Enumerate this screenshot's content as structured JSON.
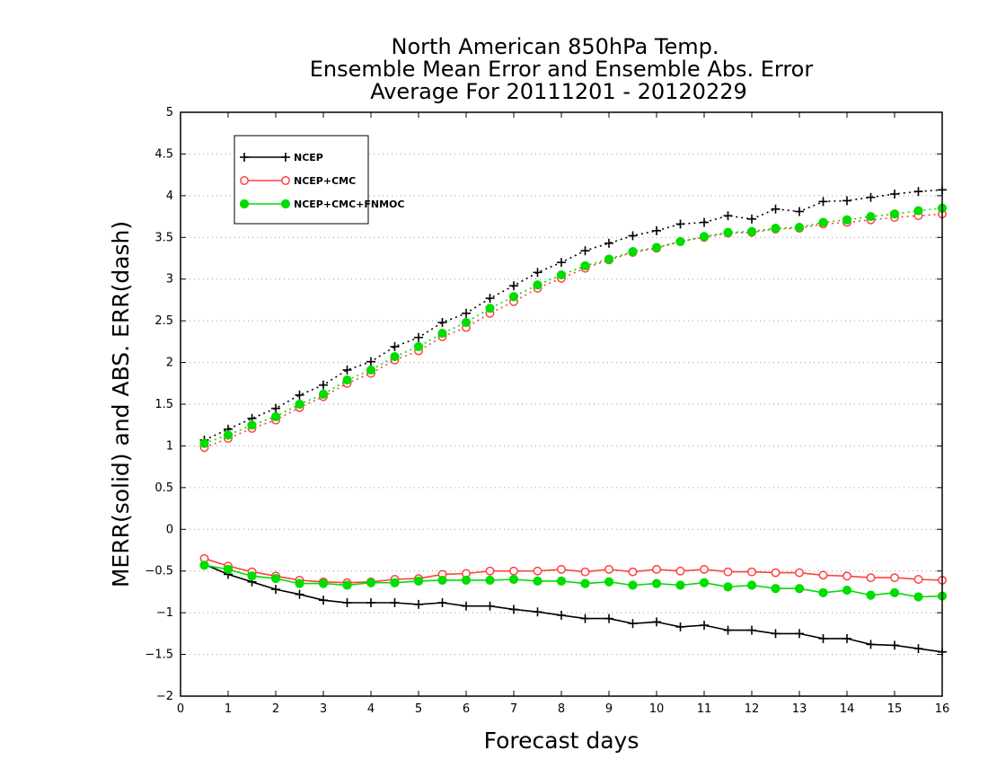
{
  "chart_data": {
    "type": "line",
    "title_lines": [
      "North American 850hPa Temp.",
      "Ensemble Mean Error and Ensemble Abs. Error",
      "Average For 20111201 - 20120229"
    ],
    "xlabel": "Forecast days",
    "ylabel": "MERR(solid) and ABS. ERR(dash)",
    "xlim": [
      0,
      16
    ],
    "ylim": [
      -2,
      5
    ],
    "xticks": [
      "0",
      "1",
      "2",
      "3",
      "4",
      "5",
      "6",
      "7",
      "8",
      "9",
      "10",
      "11",
      "12",
      "13",
      "14",
      "15",
      "16"
    ],
    "yticks": [
      "5",
      "4.5",
      "4",
      "3.5",
      "3",
      "2.5",
      "2",
      "1.5",
      "1",
      "0.5",
      "0",
      "-0.5",
      "-1",
      "-1.5",
      "-2"
    ],
    "grid": "horizontal-dotted",
    "legend_position": "top-left",
    "x": [
      0.5,
      1,
      1.5,
      2,
      2.5,
      3,
      3.5,
      4,
      4.5,
      5,
      5.5,
      6,
      6.5,
      7,
      7.5,
      8,
      8.5,
      9,
      9.5,
      10,
      10.5,
      11,
      11.5,
      12,
      12.5,
      13,
      13.5,
      14,
      14.5,
      15,
      15.5,
      16
    ],
    "series": [
      {
        "name": "NCEP",
        "color": "#000000",
        "marker": "plus",
        "abs_err_dash": [
          1.07,
          1.2,
          1.33,
          1.45,
          1.61,
          1.73,
          1.91,
          2.01,
          2.19,
          2.3,
          2.48,
          2.59,
          2.77,
          2.92,
          3.08,
          3.2,
          3.34,
          3.43,
          3.52,
          3.58,
          3.66,
          3.68,
          3.76,
          3.72,
          3.84,
          3.81,
          3.93,
          3.94,
          3.98,
          4.02,
          4.05,
          4.07
        ],
        "mean_err_solid": [
          -0.42,
          -0.54,
          -0.63,
          -0.72,
          -0.78,
          -0.85,
          -0.88,
          -0.88,
          -0.88,
          -0.9,
          -0.88,
          -0.92,
          -0.92,
          -0.96,
          -0.99,
          -1.03,
          -1.07,
          -1.07,
          -1.13,
          -1.11,
          -1.17,
          -1.15,
          -1.21,
          -1.21,
          -1.25,
          -1.25,
          -1.31,
          -1.31,
          -1.38,
          -1.39,
          -1.43,
          -1.47
        ]
      },
      {
        "name": "NCEP+CMC",
        "color": "#ff4040",
        "marker": "open-circle",
        "abs_err_dash": [
          0.98,
          1.09,
          1.21,
          1.31,
          1.46,
          1.59,
          1.75,
          1.87,
          2.03,
          2.14,
          2.31,
          2.42,
          2.59,
          2.73,
          2.89,
          3.01,
          3.13,
          3.23,
          3.32,
          3.37,
          3.45,
          3.5,
          3.55,
          3.56,
          3.6,
          3.61,
          3.66,
          3.68,
          3.71,
          3.74,
          3.76,
          3.78
        ],
        "mean_err_solid": [
          -0.35,
          -0.44,
          -0.51,
          -0.56,
          -0.61,
          -0.63,
          -0.64,
          -0.63,
          -0.6,
          -0.59,
          -0.54,
          -0.53,
          -0.5,
          -0.5,
          -0.5,
          -0.48,
          -0.51,
          -0.48,
          -0.51,
          -0.48,
          -0.5,
          -0.48,
          -0.51,
          -0.51,
          -0.52,
          -0.52,
          -0.55,
          -0.56,
          -0.58,
          -0.58,
          -0.6,
          -0.61
        ]
      },
      {
        "name": "NCEP+CMC+FNMOC",
        "color": "#00dd00",
        "marker": "filled-circle",
        "abs_err_dash": [
          1.03,
          1.13,
          1.25,
          1.35,
          1.5,
          1.62,
          1.79,
          1.91,
          2.07,
          2.19,
          2.35,
          2.48,
          2.65,
          2.79,
          2.93,
          3.05,
          3.16,
          3.24,
          3.33,
          3.38,
          3.45,
          3.51,
          3.56,
          3.57,
          3.61,
          3.62,
          3.68,
          3.71,
          3.75,
          3.78,
          3.82,
          3.85
        ],
        "mean_err_solid": [
          -0.43,
          -0.48,
          -0.56,
          -0.59,
          -0.65,
          -0.65,
          -0.67,
          -0.64,
          -0.64,
          -0.62,
          -0.61,
          -0.61,
          -0.61,
          -0.6,
          -0.62,
          -0.62,
          -0.65,
          -0.63,
          -0.67,
          -0.65,
          -0.67,
          -0.64,
          -0.69,
          -0.67,
          -0.71,
          -0.71,
          -0.76,
          -0.73,
          -0.79,
          -0.76,
          -0.81,
          -0.8
        ]
      }
    ]
  }
}
